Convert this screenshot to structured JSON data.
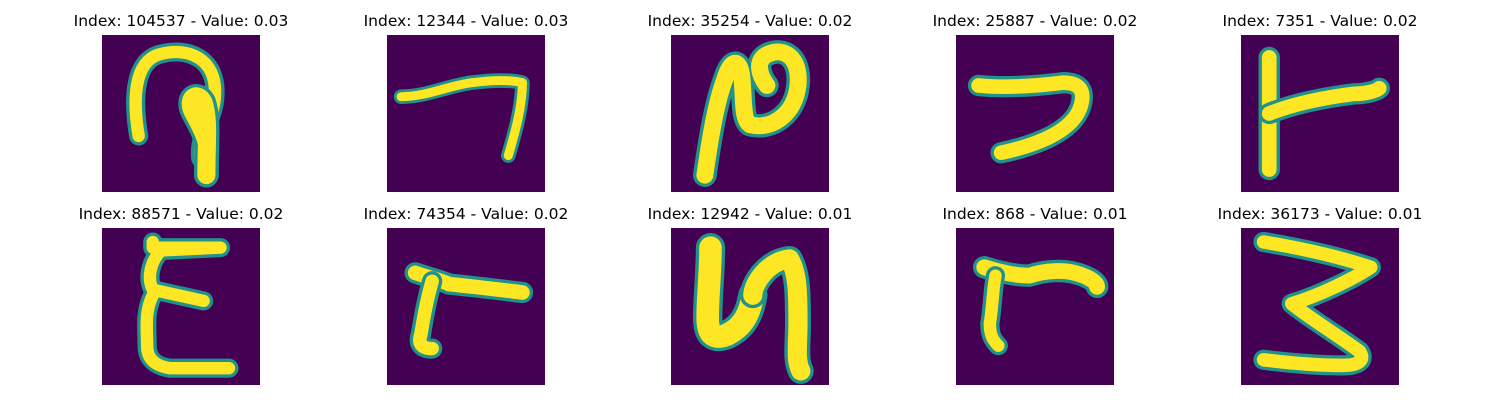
{
  "colors": {
    "background": "#440154",
    "stroke": "#fde725",
    "edge": "#21918c",
    "figure_bg": "#ffffff"
  },
  "panels": [
    {
      "title": "Index: 104537 - Value: 0.03",
      "glyph": "hook-loop"
    },
    {
      "title": "Index: 12344 - Value: 0.03",
      "glyph": "thin-seven"
    },
    {
      "title": "Index: 35254 - Value: 0.02",
      "glyph": "n-loop"
    },
    {
      "title": "Index: 25887 - Value: 0.02",
      "glyph": "reverse-c"
    },
    {
      "title": "Index: 7351 - Value: 0.02",
      "glyph": "sideways-t"
    },
    {
      "title": "Index: 88571 - Value: 0.02",
      "glyph": "epsilon"
    },
    {
      "title": "Index: 74354 - Value: 0.02",
      "glyph": "gamma"
    },
    {
      "title": "Index: 12942 - Value: 0.01",
      "glyph": "u-shape"
    },
    {
      "title": "Index: 868 - Value: 0.01",
      "glyph": "gamma-2"
    },
    {
      "title": "Index: 36173 - Value: 0.01",
      "glyph": "three"
    }
  ]
}
